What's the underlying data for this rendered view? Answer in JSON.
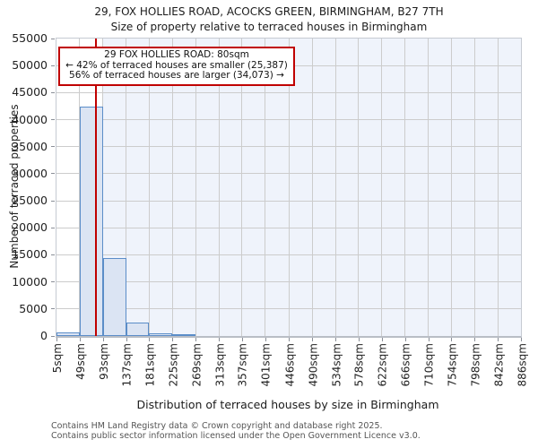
{
  "title": {
    "line1": "29, FOX HOLLIES ROAD, ACOCKS GREEN, BIRMINGHAM, B27 7TH",
    "line2": "Size of property relative to terraced houses in Birmingham"
  },
  "annotation": {
    "line1": "29 FOX HOLLIES ROAD: 80sqm",
    "line2": "← 42% of terraced houses are smaller (25,387)",
    "line3": "56% of terraced houses are larger (34,073) →"
  },
  "footer": {
    "line1": "Contains HM Land Registry data © Crown copyright and database right 2025.",
    "line2": "Contains public sector information licensed under the Open Government Licence v3.0."
  },
  "chart_data": {
    "type": "bar",
    "title": "29, FOX HOLLIES ROAD, ACOCKS GREEN, BIRMINGHAM, B27 7TH",
    "subtitle": "Size of property relative to terraced houses in Birmingham",
    "xlabel": "Distribution of terraced houses by size in Birmingham",
    "ylabel": "Number of terraced properties",
    "xlim": [
      5,
      886
    ],
    "ylim": [
      0,
      55000
    ],
    "grid": true,
    "bin_start": 5,
    "bin_width": 44,
    "values": [
      600,
      42400,
      14400,
      2500,
      500,
      250,
      0,
      0,
      0,
      0,
      0,
      0,
      0,
      0,
      0,
      0,
      0,
      0,
      0,
      0
    ],
    "x_tick_labels": [
      "5sqm",
      "49sqm",
      "93sqm",
      "137sqm",
      "181sqm",
      "225sqm",
      "269sqm",
      "313sqm",
      "357sqm",
      "401sqm",
      "446sqm",
      "490sqm",
      "534sqm",
      "578sqm",
      "622sqm",
      "666sqm",
      "710sqm",
      "754sqm",
      "798sqm",
      "842sqm",
      "886sqm"
    ],
    "x_tick_values": [
      5,
      49,
      93,
      137,
      181,
      225,
      269,
      313,
      357,
      401,
      446,
      490,
      534,
      578,
      622,
      666,
      710,
      754,
      798,
      842,
      886
    ],
    "y_ticks": [
      0,
      5000,
      10000,
      15000,
      20000,
      25000,
      30000,
      35000,
      40000,
      45000,
      50000,
      55000
    ],
    "marker": {
      "value": 80,
      "label": "80sqm",
      "color": "#c00000"
    },
    "shaded_region": {
      "from": 93,
      "to": 886,
      "color": "#eff3fb"
    },
    "colors": {
      "bar_fill": "#dbe4f3",
      "bar_edge": "#5b8dc8",
      "grid": "#cccccc",
      "annotation_border": "#c00000"
    }
  }
}
